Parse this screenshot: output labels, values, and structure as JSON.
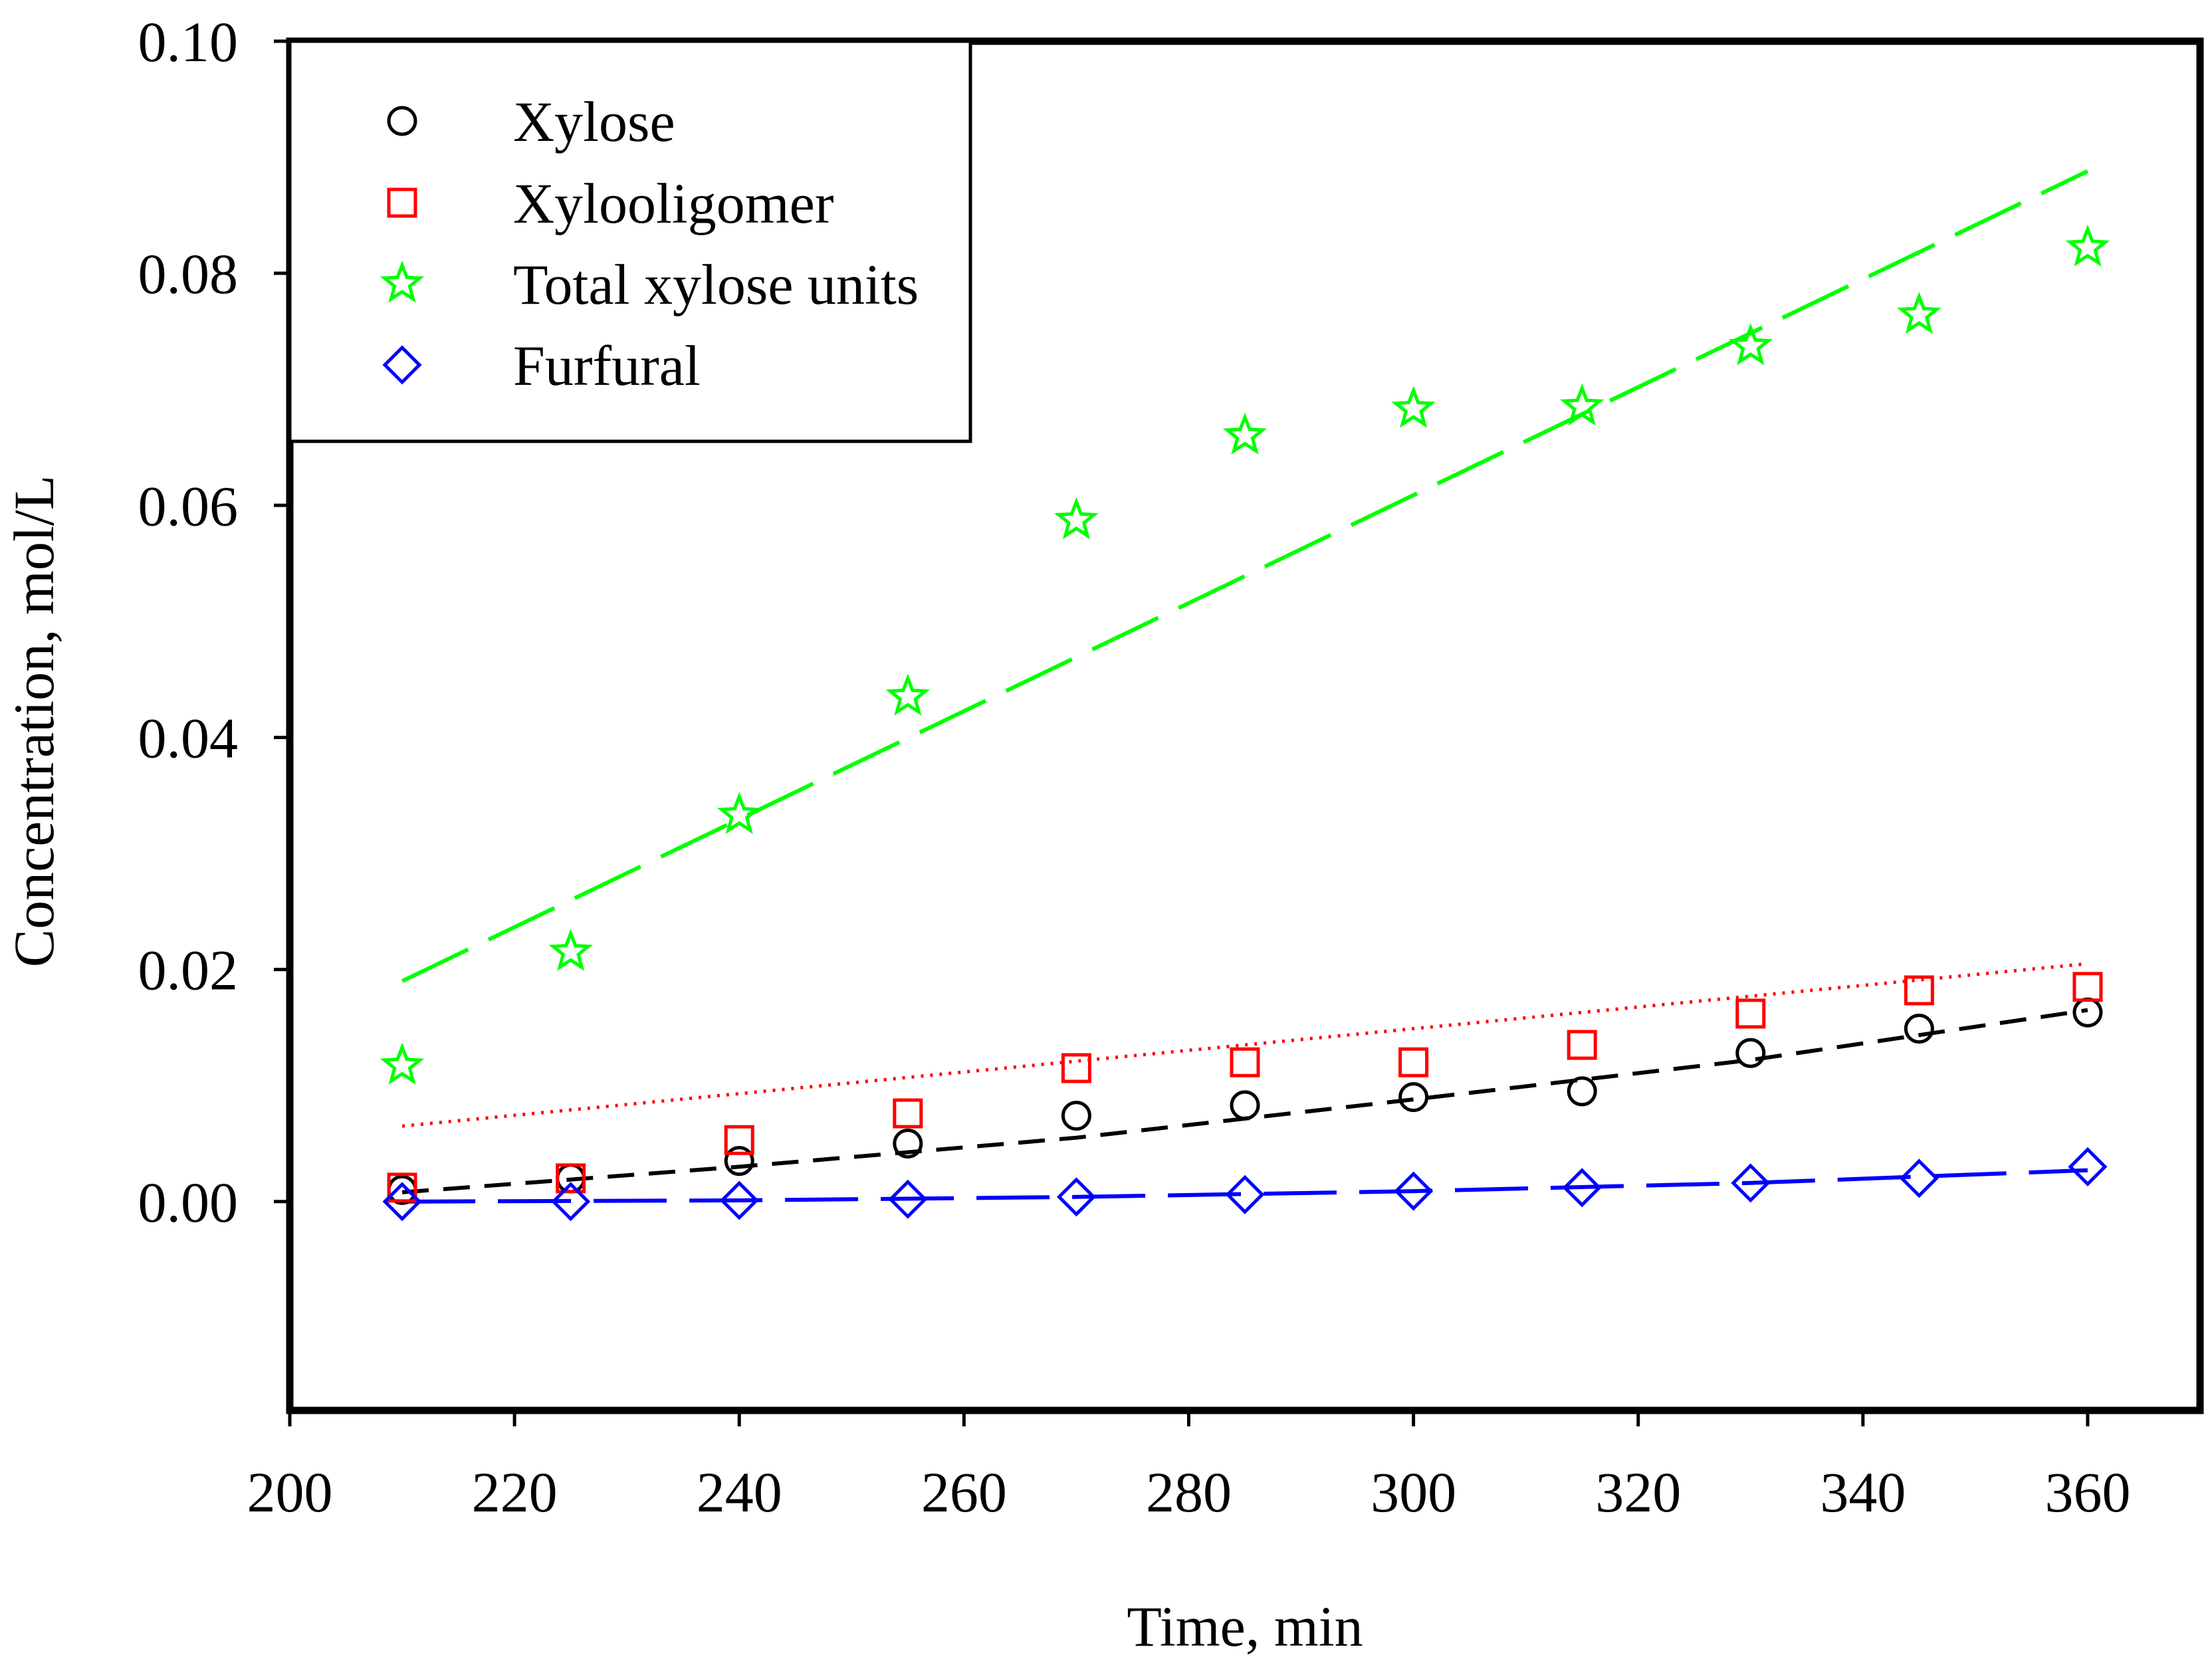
{
  "chart_data": {
    "type": "scatter",
    "title": "",
    "xlabel": "Time, min",
    "ylabel": "Concentration, mol/L",
    "xlim": [
      200,
      370
    ],
    "ylim": [
      -0.018,
      0.1
    ],
    "xticks": [
      200,
      220,
      240,
      260,
      280,
      300,
      320,
      340,
      360
    ],
    "xtick_labels": [
      "200",
      "220",
      "240",
      "260",
      "280",
      "300",
      "320",
      "340",
      "360"
    ],
    "yticks": [
      0.0,
      0.02,
      0.04,
      0.06,
      0.08,
      0.1
    ],
    "ytick_labels": [
      "0.00",
      "0.02",
      "0.04",
      "0.06",
      "0.08",
      "0.10"
    ],
    "grid": false,
    "legend_position": "top-left",
    "series": [
      {
        "name": "Xylose",
        "marker": "circle",
        "color": "#000000",
        "x": [
          210,
          225,
          240,
          255,
          270,
          285,
          300,
          315,
          330,
          345,
          360
        ],
        "values": [
          0.001,
          0.002,
          0.0035,
          0.005,
          0.0074,
          0.0083,
          0.009,
          0.0095,
          0.0128,
          0.0149,
          0.0163
        ],
        "fit": {
          "style": "dashed",
          "color": "#000000",
          "x": [
            210,
            240,
            270,
            300,
            330,
            360
          ],
          "values": [
            0.0008,
            0.003,
            0.0055,
            0.0088,
            0.0122,
            0.0165
          ]
        }
      },
      {
        "name": "Xylooligomer",
        "marker": "square",
        "color": "#ff0000",
        "x": [
          210,
          225,
          240,
          255,
          270,
          285,
          300,
          315,
          330,
          345,
          360
        ],
        "values": [
          0.0012,
          0.002,
          0.0053,
          0.0076,
          0.0115,
          0.012,
          0.012,
          0.0135,
          0.0162,
          0.0182,
          0.0185
        ],
        "fit": {
          "style": "dotted",
          "color": "#ff0000",
          "x": [
            210,
            360
          ],
          "values": [
            0.0065,
            0.0205
          ]
        }
      },
      {
        "name": "Total xylose units",
        "marker": "star",
        "color": "#00ff00",
        "x": [
          210,
          225,
          240,
          255,
          270,
          285,
          300,
          315,
          330,
          345,
          360
        ],
        "values": [
          0.0117,
          0.0215,
          0.0333,
          0.0435,
          0.0587,
          0.066,
          0.0683,
          0.0685,
          0.0737,
          0.0764,
          0.0822
        ],
        "fit": {
          "style": "long-dashed",
          "color": "#00ff00",
          "x": [
            210,
            360
          ],
          "values": [
            0.019,
            0.0888
          ]
        }
      },
      {
        "name": "Furfural",
        "marker": "diamond",
        "color": "#0000ff",
        "x": [
          210,
          225,
          240,
          255,
          270,
          285,
          300,
          315,
          330,
          345,
          360
        ],
        "values": [
          0.0,
          0.0,
          0.0001,
          0.0002,
          0.0004,
          0.0006,
          0.0009,
          0.0012,
          0.0016,
          0.002,
          0.003
        ],
        "fit": {
          "style": "long-dashed",
          "color": "#0000ff",
          "x": [
            210,
            240,
            270,
            300,
            330,
            360
          ],
          "values": [
            0.0,
            0.0001,
            0.0004,
            0.0009,
            0.0016,
            0.0027
          ]
        }
      }
    ]
  }
}
